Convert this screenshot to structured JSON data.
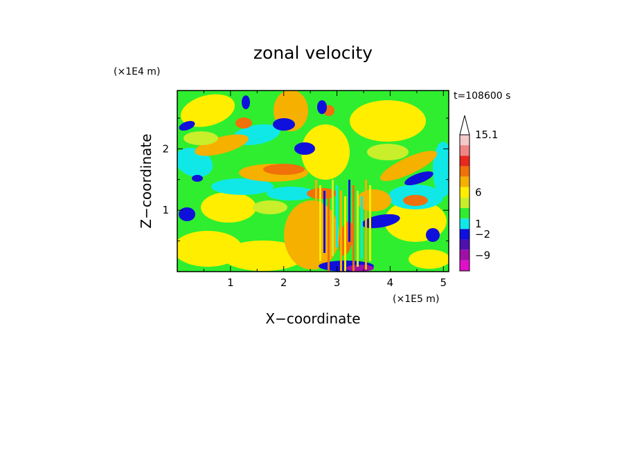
{
  "chart_data": {
    "type": "heatmap",
    "title": "zonal velocity",
    "xlabel": "X−coordinate",
    "ylabel": "Z−coordinate",
    "x_scale_label": "(×1E5 m)",
    "y_scale_label": "(×1E4 m)",
    "time_label": "t=108600 s",
    "xlim": [
      0.0,
      5.1
    ],
    "ylim": [
      0.0,
      2.95
    ],
    "x_ticks": [
      "1",
      "2",
      "3",
      "4",
      "5"
    ],
    "y_ticks": [
      "1",
      "2"
    ],
    "colorbar": {
      "labels": [
        "15.1",
        "6",
        "1",
        "−2",
        "−9"
      ],
      "colors_high_to_low": [
        "#f4c9c9",
        "#ef8585",
        "#e8281f",
        "#f0700a",
        "#f5b000",
        "#ffee00",
        "#c8ef2a",
        "#2fee2f",
        "#10e8e8",
        "#1010dc",
        "#5010b0",
        "#a010a8",
        "#e010c8"
      ],
      "extend": "max"
    },
    "palette": {
      "background": "#2fee2f",
      "strong_neg": "#1010dc",
      "neg": "#10e8e8",
      "near_zero": "#c8ef2a",
      "pos_small": "#ffee00",
      "pos": "#f5b000",
      "pos_strong": "#f0700a",
      "extreme_neg": "#a010a8"
    }
  }
}
